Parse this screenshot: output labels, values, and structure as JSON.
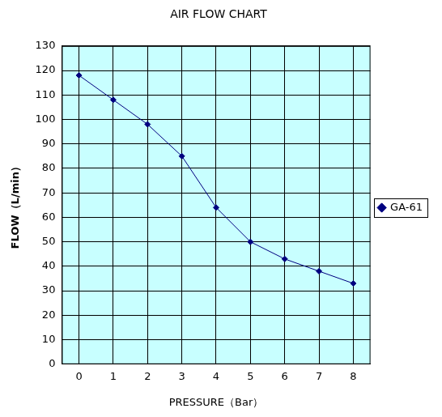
{
  "chart_data": {
    "type": "line",
    "title": "AIR FLOW CHART",
    "x_label": "PRESSURE（Bar）",
    "y_label": "FLOW（L/min）",
    "x": [
      0,
      1,
      2,
      3,
      4,
      5,
      6,
      7,
      8
    ],
    "series": [
      {
        "name": "GA-61",
        "color": "#000080",
        "marker": "diamond",
        "values": [
          118,
          108,
          98,
          85,
          64,
          50,
          43,
          38,
          33
        ]
      }
    ],
    "xlim": [
      -0.5,
      8.5
    ],
    "xticks": [
      0,
      1,
      2,
      3,
      4,
      5,
      6,
      7,
      8
    ],
    "ylim": [
      0,
      130
    ],
    "yticks": [
      0,
      10,
      20,
      30,
      40,
      50,
      60,
      70,
      80,
      90,
      100,
      110,
      120,
      130
    ],
    "grid": true,
    "legend": "right"
  }
}
